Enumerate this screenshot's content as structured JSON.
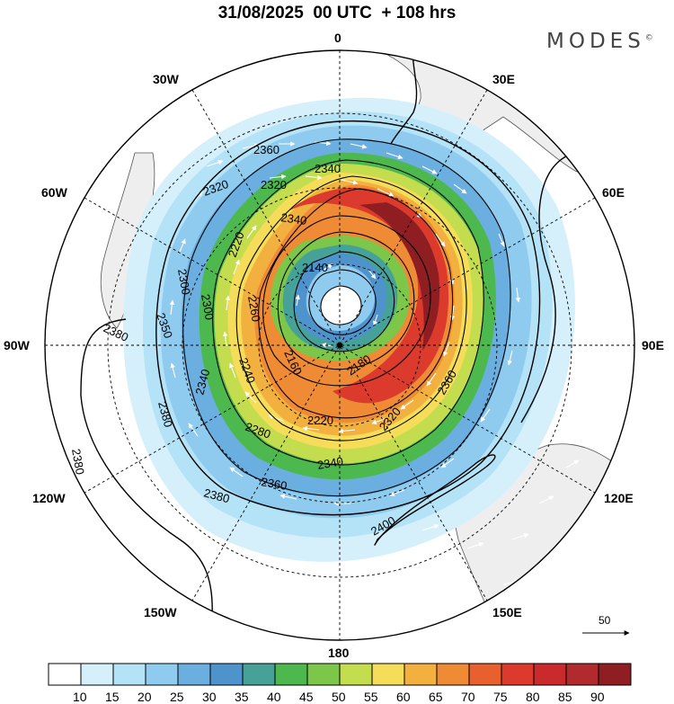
{
  "title": {
    "date": "31/08/2025",
    "time": "00 UTC",
    "lead": "+ 108 hrs"
  },
  "brand": "MODES",
  "brand_mark": "©",
  "longitude_labels": {
    "n0": "0",
    "n30e": "30E",
    "n60e": "60E",
    "n90e": "90E",
    "n120e": "120E",
    "n150e": "150E",
    "n180": "180",
    "n150w": "150W",
    "n120w": "120W",
    "n90w": "90W",
    "n60w": "60W",
    "n30w": "30W"
  },
  "contour_labels": {
    "c2360a": "2360",
    "c2340a": "2340",
    "c2320a": "2320",
    "c2320b": "2320",
    "c2340b": "2340",
    "c2220a": "2220",
    "c2300a": "2300",
    "c2140": "2140",
    "c2300b": "2300",
    "c2260": "2260",
    "c2380a": "2380",
    "c2350": "2350",
    "c2160": "2160",
    "c2180": "2180",
    "c2240": "2240",
    "c2380b": "2380",
    "c2340c": "2340",
    "c2220b": "2220",
    "c2360b": "2360",
    "c2280": "2280",
    "c2320c": "2320",
    "c2340d": "2340",
    "c2380c": "2380",
    "c2360c": "2360",
    "c2380d": "2380",
    "c2400": "2400"
  },
  "reference_vector": "50",
  "colorbar": {
    "colors": [
      "#ffffff",
      "#d6f0fb",
      "#b4e2f6",
      "#8ecbee",
      "#6aafe0",
      "#4f93cd",
      "#46a198",
      "#4db84e",
      "#7cc74a",
      "#c4dd4e",
      "#f5dd5a",
      "#f2b13f",
      "#ef8a35",
      "#e8602e",
      "#db3a2c",
      "#c92a2c",
      "#b02a2e",
      "#8f1e22"
    ],
    "labels": [
      "10",
      "15",
      "20",
      "25",
      "30",
      "35",
      "40",
      "45",
      "50",
      "55",
      "60",
      "65",
      "70",
      "75",
      "80",
      "85",
      "90"
    ]
  }
}
